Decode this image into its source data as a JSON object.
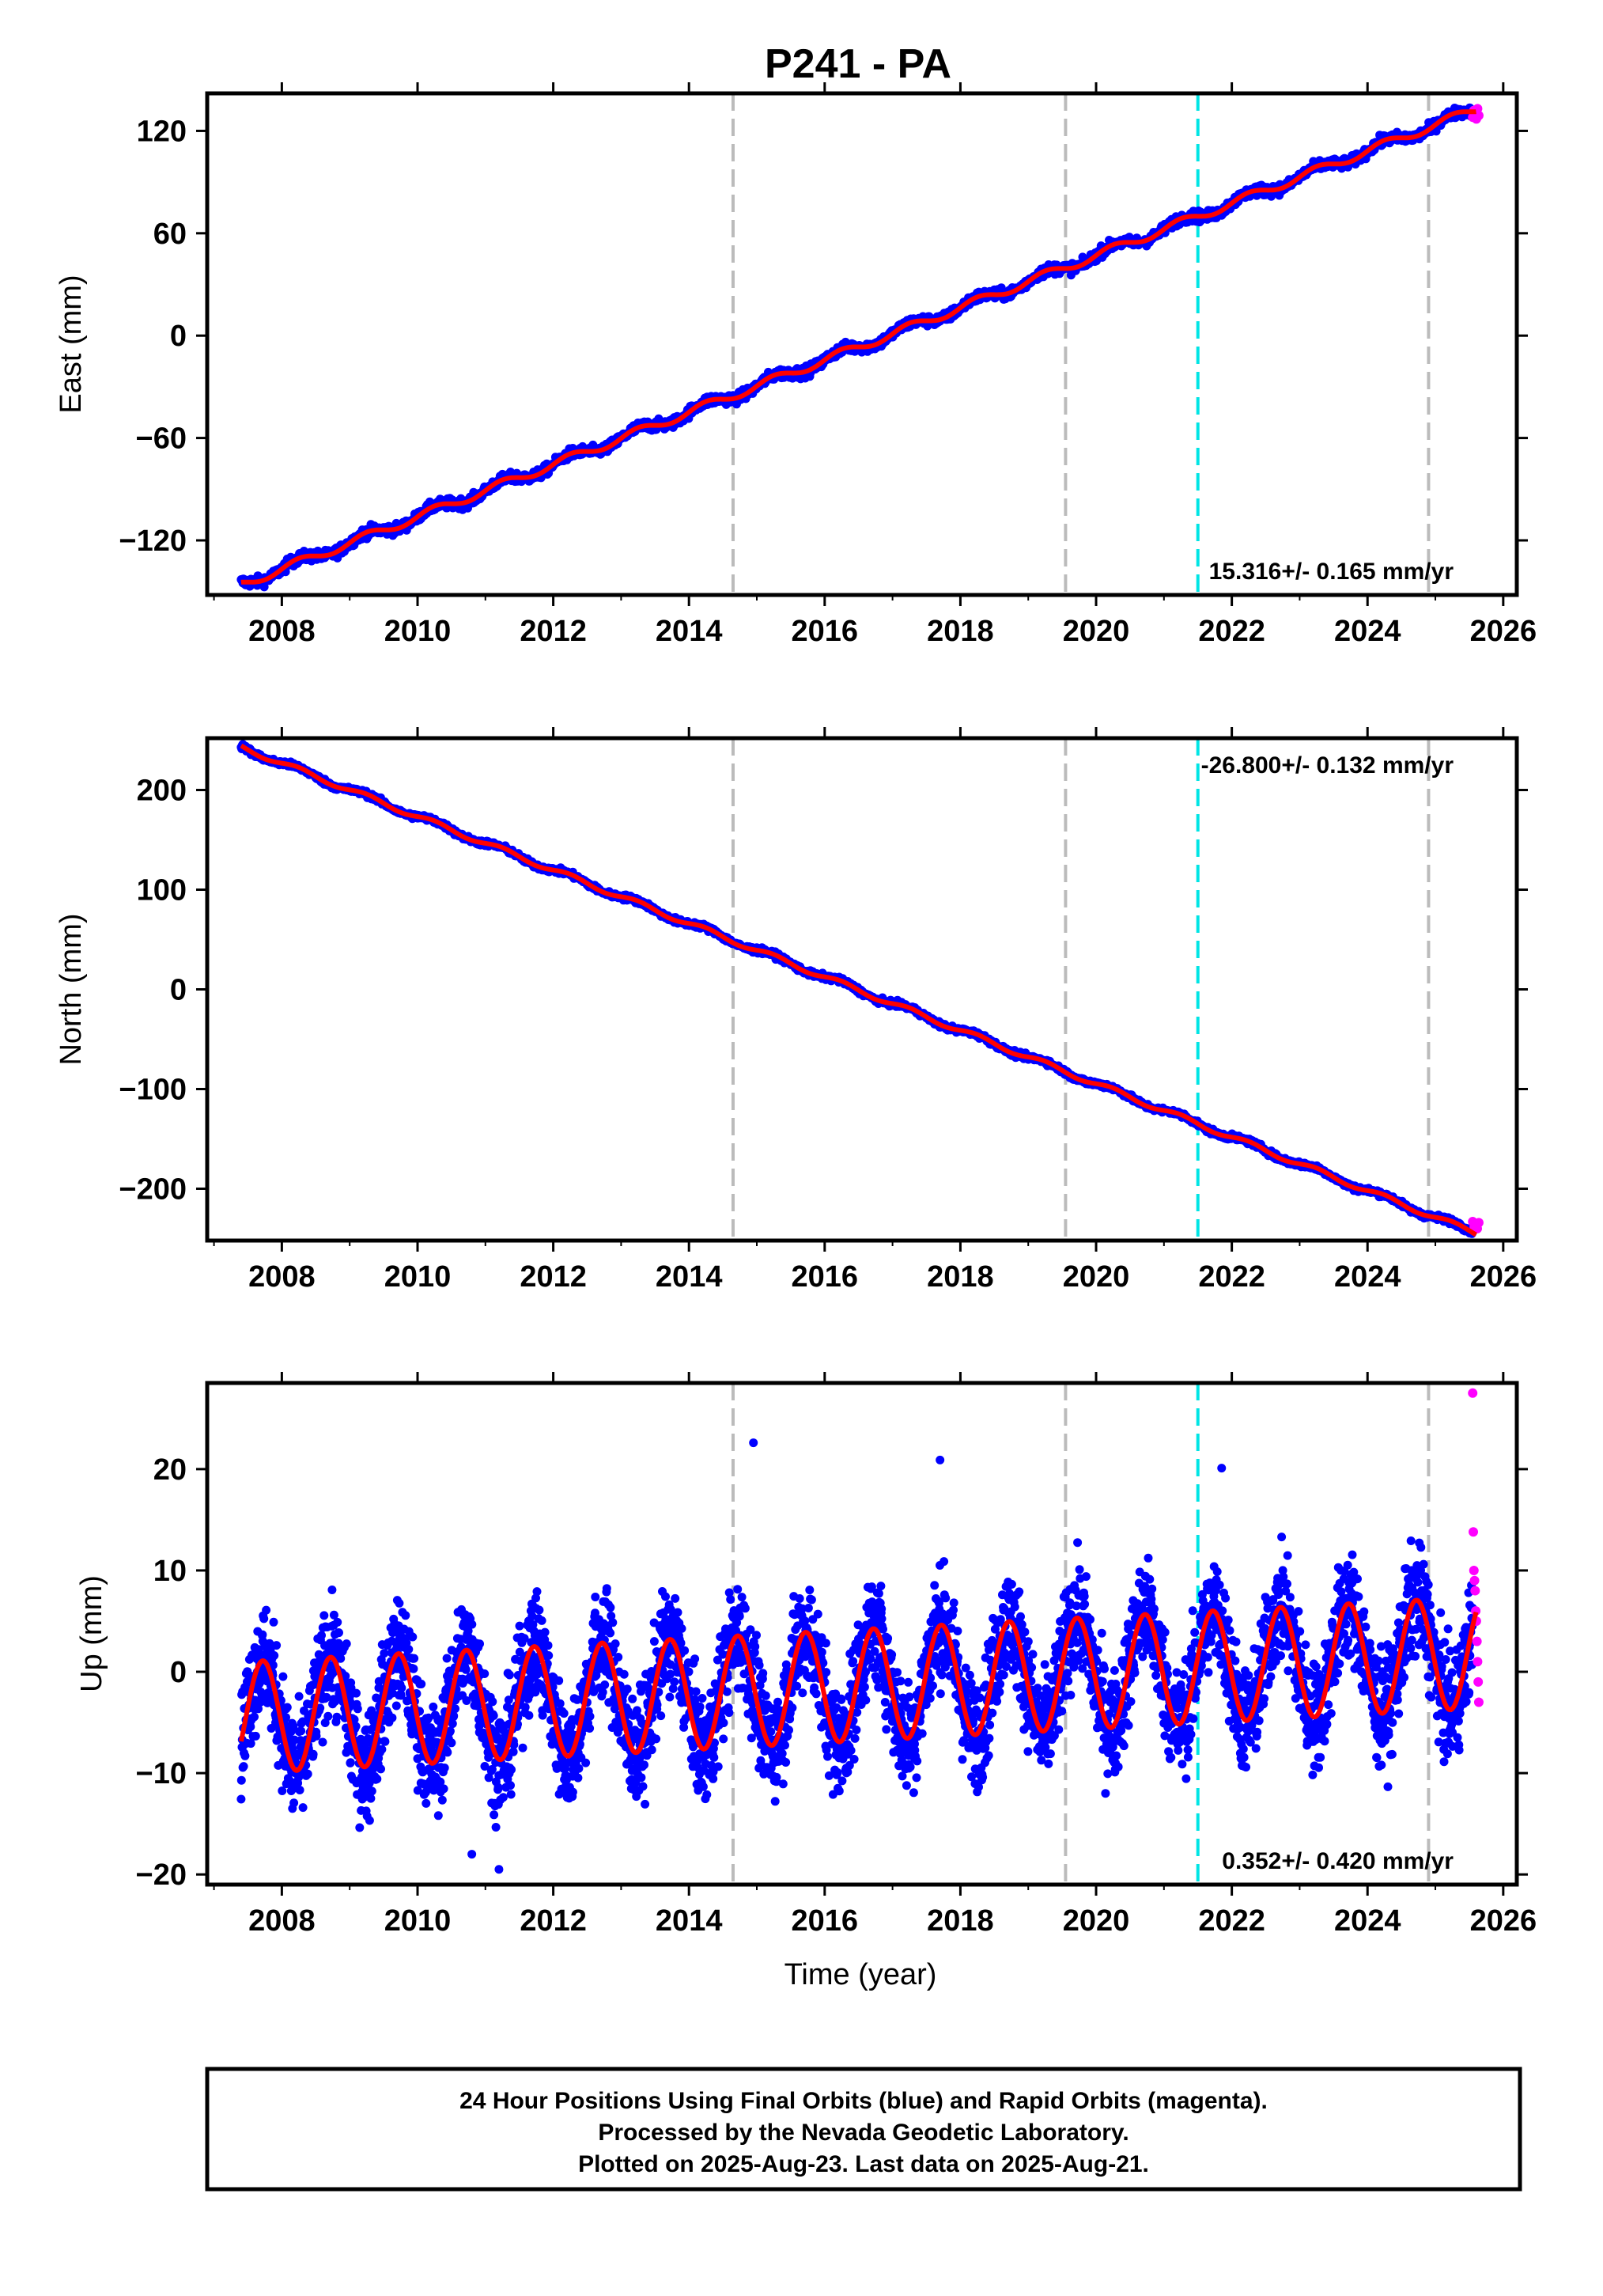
{
  "title": "P241 - PA",
  "footer": {
    "line1": "24 Hour Positions Using Final Orbits (blue) and Rapid Orbits (magenta).",
    "line2": "Processed by the Nevada Geodetic Laboratory.",
    "line3": "Plotted on 2025-Aug-23. Last data on 2025-Aug-21."
  },
  "colors": {
    "final_orbits": "#0000ff",
    "rapid_orbits": "#ff00ff",
    "model": "#ff0000",
    "event_line": "#bbbbbb",
    "event_line_special": "#00e5e5"
  },
  "chart_data": [
    {
      "type": "scatter",
      "component": "East",
      "ylabel": "East (mm)",
      "xlabel": "",
      "xlim": [
        2006.9,
        2026.2
      ],
      "ylim": [
        -152,
        142
      ],
      "xticks": [
        2008,
        2010,
        2012,
        2014,
        2016,
        2018,
        2020,
        2022,
        2024,
        2026
      ],
      "yticks": [
        -120,
        -60,
        0,
        60,
        120
      ],
      "ytick_labels": [
        "−120",
        "−60",
        "0",
        "60",
        "120"
      ],
      "rate_text": "15.316+/- 0.165 mm/yr",
      "rate_position": "bottom-right",
      "event_lines": [
        2014.65,
        2019.55
      ],
      "event_lines_late": [
        2024.9
      ],
      "special_event_line": 2021.5,
      "model": {
        "start": [
          2007.4,
          -146
        ],
        "slope_mm_per_yr": 15.316,
        "seasonal_amplitude": 2.5,
        "offset_at_2014_65": 5
      },
      "final_orbits": {
        "start": 2007.4,
        "end": 2025.55,
        "noise": 2.2
      },
      "rapid_orbits": {
        "start": 2025.55,
        "end": 2025.64,
        "values": [
          128,
          132,
          130,
          127,
          133,
          129
        ]
      },
      "series": [
        {
          "name": "Final Orbits (blue)",
          "values": []
        },
        {
          "name": "Rapid Orbits (magenta)",
          "values": []
        }
      ]
    },
    {
      "type": "scatter",
      "component": "North",
      "ylabel": "North (mm)",
      "xlabel": "",
      "xlim": [
        2006.9,
        2026.2
      ],
      "ylim": [
        -252,
        252
      ],
      "xticks": [
        2008,
        2010,
        2012,
        2014,
        2016,
        2018,
        2020,
        2022,
        2024,
        2026
      ],
      "yticks": [
        -200,
        -100,
        0,
        100,
        200
      ],
      "ytick_labels": [
        "−200",
        "−100",
        "0",
        "100",
        "200"
      ],
      "rate_text": "-26.800+/- 0.132 mm/yr",
      "rate_position": "top-right",
      "event_lines": [
        2014.65,
        2019.55
      ],
      "event_lines_late": [
        2024.9
      ],
      "special_event_line": 2021.5,
      "model": {
        "start": [
          2007.4,
          243
        ],
        "slope_mm_per_yr": -26.8,
        "seasonal_amplitude": 2.5
      },
      "final_orbits": {
        "start": 2007.4,
        "end": 2025.55,
        "noise": 2.0
      },
      "rapid_orbits": {
        "start": 2025.55,
        "end": 2025.64,
        "values": [
          -233,
          -238,
          -236,
          -240,
          -234
        ]
      }
    },
    {
      "type": "scatter",
      "component": "Up",
      "ylabel": "Up (mm)",
      "xlabel": "Time (year)",
      "xlim": [
        2006.9,
        2026.2
      ],
      "ylim": [
        -21,
        28.5
      ],
      "xticks": [
        2008,
        2010,
        2012,
        2014,
        2016,
        2018,
        2020,
        2022,
        2024,
        2026
      ],
      "yticks": [
        -20,
        -10,
        0,
        10,
        20
      ],
      "ytick_labels": [
        "−20",
        "−10",
        "0",
        "10",
        "20"
      ],
      "rate_text": "0.352+/- 0.420 mm/yr",
      "rate_position": "bottom-right",
      "event_lines": [
        2014.65,
        2019.55
      ],
      "event_lines_late": [
        2024.9
      ],
      "special_event_line": 2021.5,
      "model": {
        "mean": -1.5,
        "slope_mm_per_yr": 0.352,
        "seasonal_amplitude": 5.5,
        "phase_peak": 0.72
      },
      "final_orbits": {
        "start": 2007.4,
        "end": 2025.55,
        "noise": 3.8
      },
      "outliers": [
        [
          2014.95,
          22.6
        ],
        [
          2017.7,
          20.9
        ],
        [
          2021.85,
          20.1
        ],
        [
          2011.2,
          -19.5
        ],
        [
          2010.8,
          -18.0
        ]
      ],
      "rapid_orbits": {
        "start": 2025.55,
        "end": 2025.64,
        "values": [
          27.5,
          13.8,
          10,
          9,
          8,
          6,
          5,
          3,
          1,
          -1,
          -3
        ]
      }
    }
  ]
}
